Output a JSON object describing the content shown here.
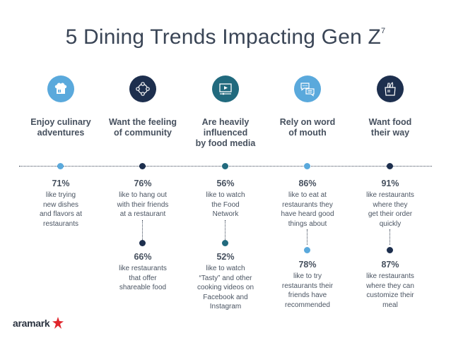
{
  "title": {
    "text": "5 Dining Trends Impacting Gen Z",
    "superscript": "7"
  },
  "colors": {
    "light_blue": "#5aa9dc",
    "navy": "#1d2f4e",
    "teal": "#216a7e",
    "text": "#46505e"
  },
  "columns": [
    {
      "icon": "chef-hat-icon",
      "heading": "Enjoy culinary\nadventures",
      "stats": [
        {
          "pct": "71%",
          "desc": "like trying\nnew dishes\nand flavors at\nrestaurants"
        }
      ]
    },
    {
      "icon": "community-network-icon",
      "heading": "Want the feeling\nof community",
      "stats": [
        {
          "pct": "76%",
          "desc": "like to hang out\nwith their friends\nat a restaurant"
        },
        {
          "pct": "66%",
          "desc": "like restaurants\nthat offer\nshareable food"
        }
      ]
    },
    {
      "icon": "video-screen-icon",
      "heading": "Are heavily\ninfluenced\nby food media",
      "stats": [
        {
          "pct": "56%",
          "desc": "like to watch\nthe Food\nNetwork"
        },
        {
          "pct": "52%",
          "desc": "like to watch\n“Tasty” and other\ncooking videos on\nFacebook and\nInstagram"
        }
      ]
    },
    {
      "icon": "chat-bubbles-icon",
      "heading": "Rely on word\nof mouth",
      "stats": [
        {
          "pct": "86%",
          "desc": "like to eat at\nrestaurants they\nhave heard good\nthings about"
        },
        {
          "pct": "78%",
          "desc": "like to try\nrestaurants their\nfriends have\nrecommended"
        }
      ]
    },
    {
      "icon": "grocery-bag-icon",
      "heading": "Want food\ntheir way",
      "stats": [
        {
          "pct": "91%",
          "desc": "like restaurants\nwhere they\nget their order\nquickly"
        },
        {
          "pct": "87%",
          "desc": "like restaurants\nwhere they can\ncustomize their\nmeal"
        }
      ]
    }
  ],
  "logo": {
    "text": "aramark"
  }
}
